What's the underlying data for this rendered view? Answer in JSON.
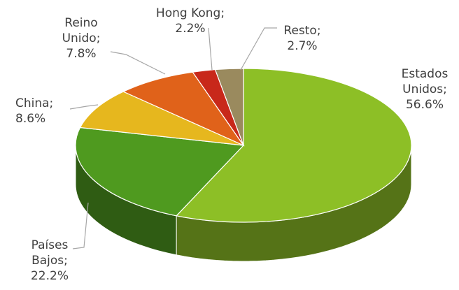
{
  "chart_data": {
    "type": "pie",
    "values": [
      56.6,
      22.2,
      8.6,
      7.8,
      2.2,
      2.7
    ],
    "value_labels": [
      "Estados Unidos; 56.6%",
      "Países Bajos; 22.2%",
      "China; 8.6%",
      "Reino Unido; 7.8%",
      "Hong Kong; 2.2%",
      "Resto; 2.7%"
    ],
    "colors": [
      "#8dbf26",
      "#4f9a1f",
      "#e6b71e",
      "#e0621a",
      "#c8281a",
      "#9a8a5e"
    ]
  }
}
